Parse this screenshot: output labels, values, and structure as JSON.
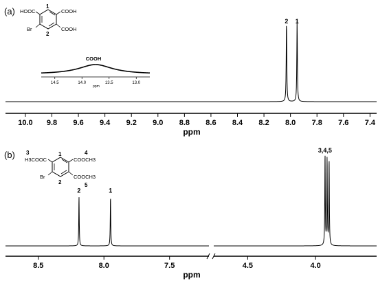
{
  "chart_data": [
    {
      "type": "line",
      "panel_label": "(a)",
      "xlabel": "ppm",
      "xlim": [
        10.15,
        7.35
      ],
      "x_reversed": true,
      "ticks": [
        "10.0",
        "9.8",
        "9.6",
        "9.4",
        "9.2",
        "9.0",
        "8.8",
        "8.6",
        "8.4",
        "8.2",
        "8.0",
        "7.8",
        "7.6",
        "7.4"
      ],
      "peaks": [
        {
          "label": "2",
          "ppm": 8.03,
          "height": 1.0
        },
        {
          "label": "1",
          "ppm": 7.95,
          "height": 1.0
        }
      ],
      "inset": {
        "title": "COOH",
        "xlabel": "ppm",
        "xlim": [
          14.75,
          12.75
        ],
        "ticks": [
          "14.5",
          "14.0",
          "13.5",
          "13.0"
        ],
        "broad_peak_center": 13.75
      },
      "structure": {
        "groups": [
          "HOOC",
          "COOH",
          "Br",
          "COOH"
        ],
        "numbers": [
          "1",
          "2"
        ]
      }
    },
    {
      "type": "line",
      "panel_label": "(b)",
      "xlabel": "ppm",
      "axis_break": true,
      "segments": [
        {
          "xlim": [
            8.75,
            7.2
          ],
          "ticks": [
            "8.5",
            "8.0",
            "7.5"
          ]
        },
        {
          "xlim": [
            4.75,
            3.55
          ],
          "ticks": [
            "4.5",
            "4.0"
          ]
        }
      ],
      "peaks": [
        {
          "label": "2",
          "ppm": 8.19,
          "height": 0.55
        },
        {
          "label": "1",
          "ppm": 7.95,
          "height": 0.55
        },
        {
          "label": "3,4,5",
          "ppm": 3.93,
          "height": 1.0
        },
        {
          "label": "",
          "ppm": 3.915,
          "height": 0.96
        },
        {
          "label": "",
          "ppm": 3.9,
          "height": 0.94
        }
      ],
      "structure": {
        "groups": [
          "H3COOC",
          "COOCH3",
          "Br",
          "COOCH3"
        ],
        "numbers": [
          "3",
          "1",
          "4",
          "2",
          "5"
        ]
      }
    }
  ]
}
